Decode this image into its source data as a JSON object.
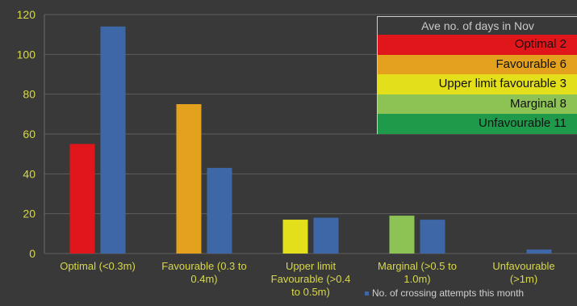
{
  "chart_data": {
    "type": "bar",
    "categories": [
      "Optimal (<0.3m)",
      "Favourable (0.3 to 0.4m)",
      "Upper limit Favourable (>0.4 to 0.5m)",
      "Marginal (>0.5 to 1.0m)",
      "Unfavourable (>1m)"
    ],
    "series": [
      {
        "values": [
          55,
          75,
          17,
          19,
          0
        ],
        "colors": [
          "#e0161b",
          "#e4a11e",
          "#e3e01b",
          "#8dc354",
          "#1f9a4b"
        ]
      },
      {
        "name": "No. of crossing attempts this month",
        "values": [
          114,
          43,
          18,
          17,
          2
        ],
        "color": "#3e67a8"
      }
    ],
    "ylim": [
      0,
      120
    ],
    "yticks": [
      0,
      20,
      40,
      60,
      80,
      100,
      120
    ],
    "grid": true,
    "legend_box": {
      "title": "Ave no. of days in Nov",
      "items": [
        {
          "label": "Optimal 2",
          "color": "#e0161b"
        },
        {
          "label": "Favourable 6",
          "color": "#e4a11e"
        },
        {
          "label": "Upper limit favourable 3",
          "color": "#e3e01b"
        },
        {
          "label": "Marginal 8",
          "color": "#8dc354"
        },
        {
          "label": "Unfavourable 11",
          "color": "#1f9a4b"
        }
      ]
    },
    "series_legend": "No. of crossing attempts this month",
    "text_color": "#d8d84a"
  }
}
